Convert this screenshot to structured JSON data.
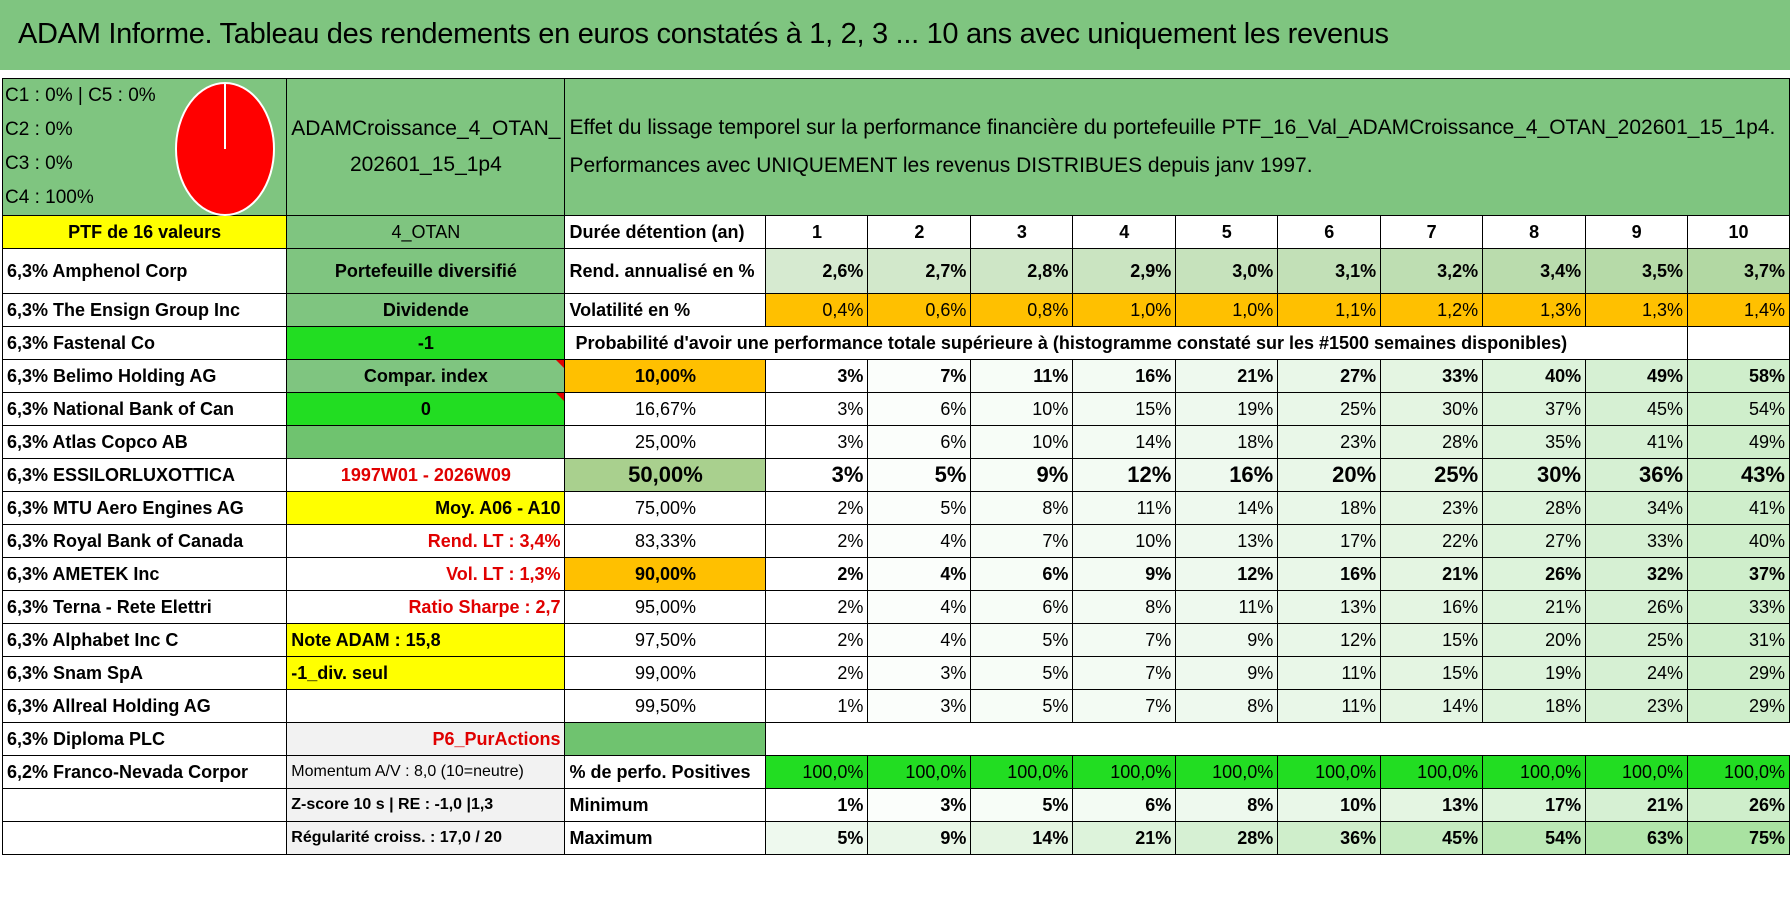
{
  "title": "ADAM Informe. Tableau des rendements en euros constatés à 1, 2, 3 ... 10 ans avec uniquement les revenus",
  "colors": {
    "header_green": "#7fc580",
    "bright_green": "#22dd22",
    "yellow": "#ffff00",
    "orange": "#ffc000",
    "red_text": "#e00000",
    "pie": "#ff0000"
  },
  "legend": [
    "C1 : 0% | C5 : 0%",
    "C2 : 0%",
    "C3 : 0%",
    "C4 : 100%"
  ],
  "pie": {
    "C4": 100
  },
  "portfolio_name": "ADAMCroissance_4_OTAN_202601_15_1p4",
  "portfolio_name_line1": "ADAMCroissance_4_OTAN_",
  "portfolio_name_line2": "202601_15_1p4",
  "description_line1": "Effet du lissage temporel sur la performance financière du portefeuille PTF_16_Val_ADAMCroissance_4_OTAN_202601_15_1p4.",
  "description_line2": "Performances avec UNIQUEMENT les revenus DISTRIBUES depuis janv 1997.",
  "ptf_label": "PTF de 16 valeurs",
  "holdings": [
    "6,3% Amphenol Corp",
    "6,3% The Ensign Group Inc",
    "6,3% Fastenal Co",
    "6,3% Belimo Holding AG",
    "6,3% National Bank of Can",
    "6,3% Atlas Copco AB",
    "6,3% ESSILORLUXOTTICA",
    "6,3% MTU Aero Engines AG",
    "6,3% Royal Bank of Canada",
    "6,3% AMETEK Inc",
    "6,3% Terna - Rete Elettri",
    "6,3% Alphabet Inc C",
    "6,3% Snam SpA",
    "6,3% Allreal Holding AG",
    "6,3% Diploma PLC",
    "6,2% Franco-Nevada Corpor"
  ],
  "info": {
    "code": "4_OTAN",
    "type": "Portefeuille diversifié",
    "dividende": "Dividende",
    "minus_one": "-1",
    "compar": "Compar. index",
    "zero": "0",
    "period": "1997W01 - 2026W09",
    "moy": "Moy. A06 - A10",
    "rend_lt": "Rend. LT : 3,4%",
    "vol_lt": "Vol. LT : 1,3%",
    "sharpe": "Ratio Sharpe : 2,7",
    "note": "Note ADAM : 15,8",
    "div_seul": "-1_div. seul",
    "pur": "P6_PurActions",
    "momentum": "Momentum A/V : 8,0 (10=neutre)",
    "zscore": "Z-score 10 s | RE : -1,0 |1,3",
    "regularite": "Régularité croiss. : 17,0 / 20"
  },
  "labels": {
    "duree": "Durée détention (an)",
    "rend": "Rend. annualisé en %",
    "vol": "Volatilité en %",
    "proba": "Probabilité d'avoir une performance totale supérieure à (histogramme constaté sur les #1500 semaines disponibles)",
    "positives": "% de perfo. Positives",
    "minimum": "Minimum",
    "maximum": "Maximum"
  },
  "years": [
    "1",
    "2",
    "3",
    "4",
    "5",
    "6",
    "7",
    "8",
    "9",
    "10"
  ],
  "rendement": [
    "2,6%",
    "2,7%",
    "2,8%",
    "2,9%",
    "3,0%",
    "3,1%",
    "3,2%",
    "3,4%",
    "3,5%",
    "3,7%"
  ],
  "volatilite": [
    "0,4%",
    "0,6%",
    "0,8%",
    "1,0%",
    "1,0%",
    "1,1%",
    "1,2%",
    "1,3%",
    "1,3%",
    "1,4%"
  ],
  "percentiles": [
    {
      "p": "10,00%",
      "v": [
        "3%",
        "7%",
        "11%",
        "16%",
        "21%",
        "27%",
        "33%",
        "40%",
        "49%",
        "58%"
      ]
    },
    {
      "p": "16,67%",
      "v": [
        "3%",
        "6%",
        "10%",
        "15%",
        "19%",
        "25%",
        "30%",
        "37%",
        "45%",
        "54%"
      ]
    },
    {
      "p": "25,00%",
      "v": [
        "3%",
        "6%",
        "10%",
        "14%",
        "18%",
        "23%",
        "28%",
        "35%",
        "41%",
        "49%"
      ]
    },
    {
      "p": "50,00%",
      "v": [
        "3%",
        "5%",
        "9%",
        "12%",
        "16%",
        "20%",
        "25%",
        "30%",
        "36%",
        "43%"
      ]
    },
    {
      "p": "75,00%",
      "v": [
        "2%",
        "5%",
        "8%",
        "11%",
        "14%",
        "18%",
        "23%",
        "28%",
        "34%",
        "41%"
      ]
    },
    {
      "p": "83,33%",
      "v": [
        "2%",
        "4%",
        "7%",
        "10%",
        "13%",
        "17%",
        "22%",
        "27%",
        "33%",
        "40%"
      ]
    },
    {
      "p": "90,00%",
      "v": [
        "2%",
        "4%",
        "6%",
        "9%",
        "12%",
        "16%",
        "21%",
        "26%",
        "32%",
        "37%"
      ]
    },
    {
      "p": "95,00%",
      "v": [
        "2%",
        "4%",
        "6%",
        "8%",
        "11%",
        "13%",
        "16%",
        "21%",
        "26%",
        "33%"
      ]
    },
    {
      "p": "97,50%",
      "v": [
        "2%",
        "4%",
        "5%",
        "7%",
        "9%",
        "12%",
        "15%",
        "20%",
        "25%",
        "31%"
      ]
    },
    {
      "p": "99,00%",
      "v": [
        "2%",
        "3%",
        "5%",
        "7%",
        "9%",
        "11%",
        "15%",
        "19%",
        "24%",
        "29%"
      ]
    },
    {
      "p": "99,50%",
      "v": [
        "1%",
        "3%",
        "5%",
        "7%",
        "8%",
        "11%",
        "14%",
        "18%",
        "23%",
        "29%"
      ]
    }
  ],
  "positives": [
    "100,0%",
    "100,0%",
    "100,0%",
    "100,0%",
    "100,0%",
    "100,0%",
    "100,0%",
    "100,0%",
    "100,0%",
    "100,0%"
  ],
  "minimum": [
    "1%",
    "3%",
    "5%",
    "6%",
    "8%",
    "10%",
    "13%",
    "17%",
    "21%",
    "26%"
  ],
  "maximum": [
    "5%",
    "9%",
    "14%",
    "21%",
    "28%",
    "36%",
    "45%",
    "54%",
    "63%",
    "75%"
  ]
}
